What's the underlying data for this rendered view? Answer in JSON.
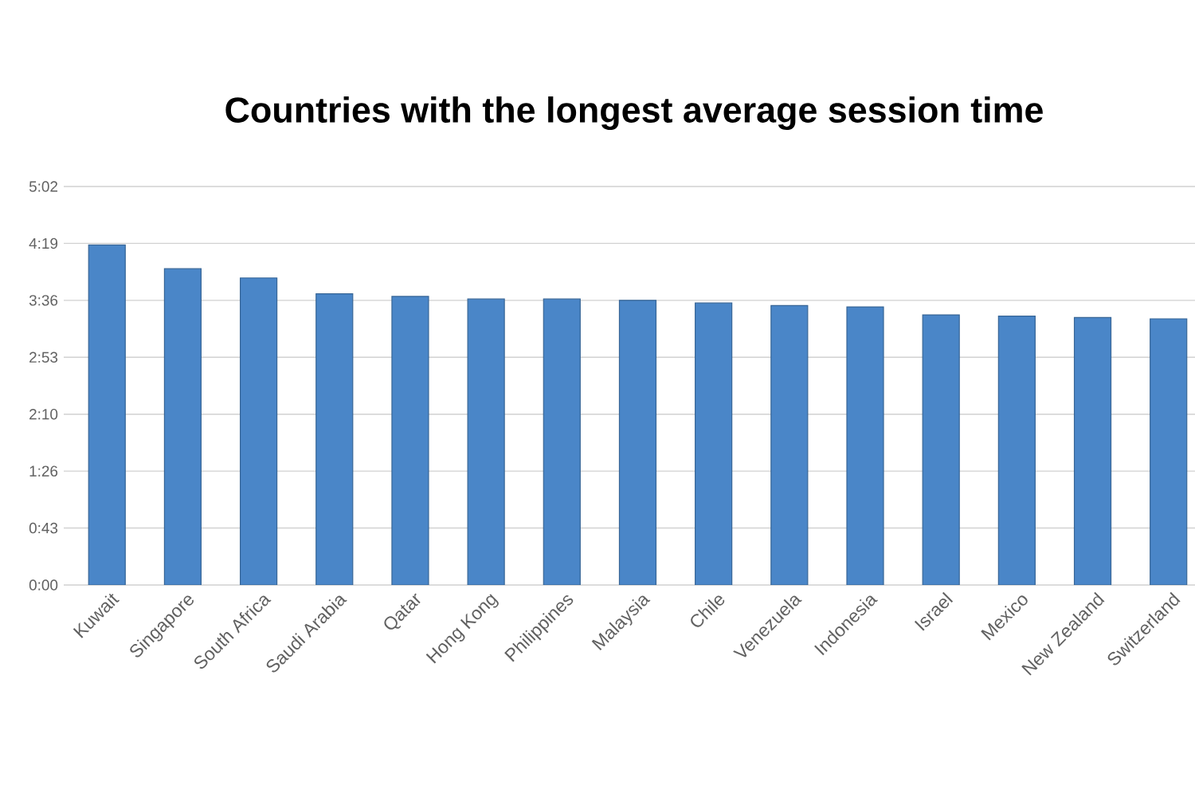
{
  "chart_data": {
    "type": "bar",
    "title": "Countries with the longest average session time",
    "categories": [
      "Kuwait",
      "Singapore",
      "South Africa",
      "Saudi Arabia",
      "Qatar",
      "Hong Kong",
      "Philippines",
      "Malaysia",
      "Chile",
      "Venezuela",
      "Indonesia",
      "Israel",
      "Mexico",
      "New Zealand",
      "Switzerland"
    ],
    "values": [
      258,
      240,
      233,
      221,
      219,
      217,
      217,
      216,
      214,
      212,
      211,
      205,
      204,
      203,
      202
    ],
    "color": "#4a86c8",
    "ylim": [
      0,
      302.4
    ],
    "yticks": [
      {
        "value": 0,
        "label": "0:00"
      },
      {
        "value": 43.2,
        "label": "0:43"
      },
      {
        "value": 86.4,
        "label": "1:26"
      },
      {
        "value": 129.6,
        "label": "2:10"
      },
      {
        "value": 172.8,
        "label": "2:53"
      },
      {
        "value": 216,
        "label": "3:36"
      },
      {
        "value": 259.2,
        "label": "4:19"
      },
      {
        "value": 302.4,
        "label": "5:02"
      }
    ],
    "grid": "y"
  }
}
